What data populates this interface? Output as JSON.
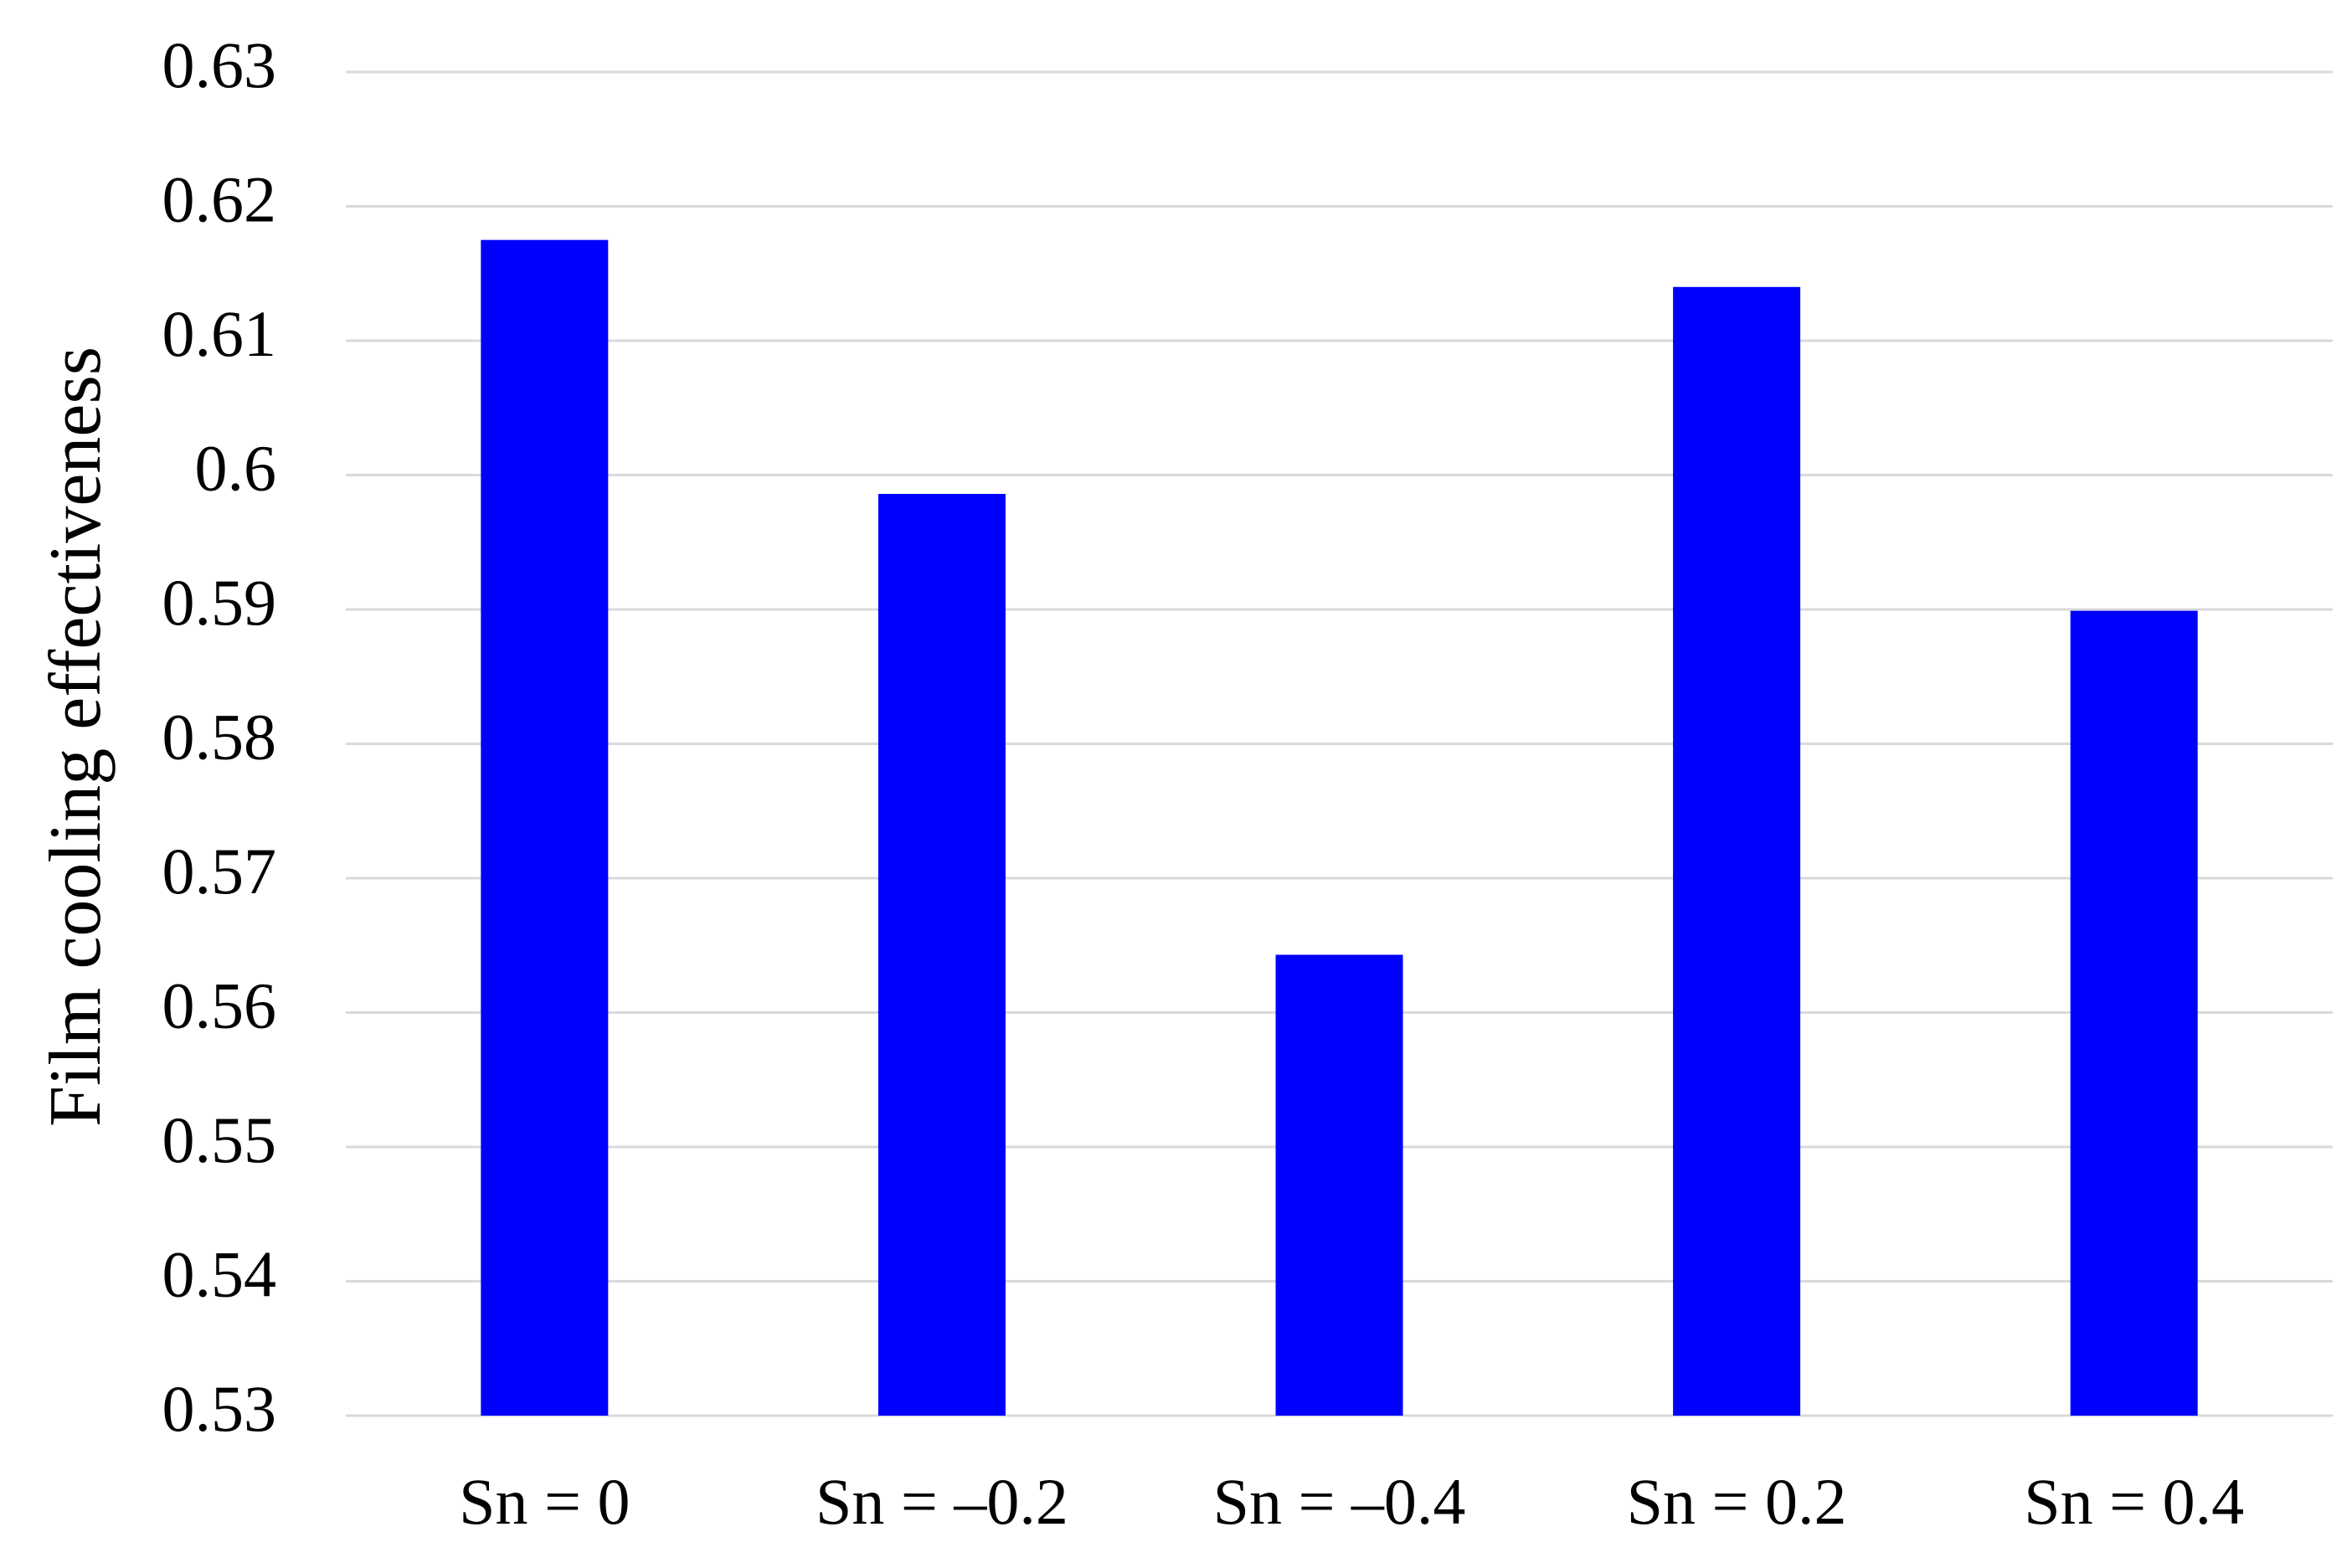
{
  "chart_data": {
    "type": "bar",
    "y_label": "Film cooling effectiveness",
    "categories": [
      "Sn = 0",
      "Sn = –0.2",
      "Sn = –0.4",
      "Sn = 0.2",
      "Sn = 0.4"
    ],
    "values": [
      0.6175,
      0.5986,
      0.5643,
      0.614,
      0.5899
    ],
    "color": "#0000ff",
    "ylim": [
      0.53,
      0.63
    ],
    "yticks": [
      0.53,
      0.54,
      0.55,
      0.56,
      0.57,
      0.58,
      0.59,
      0.6,
      0.61,
      0.62,
      0.63
    ],
    "grid": true
  }
}
